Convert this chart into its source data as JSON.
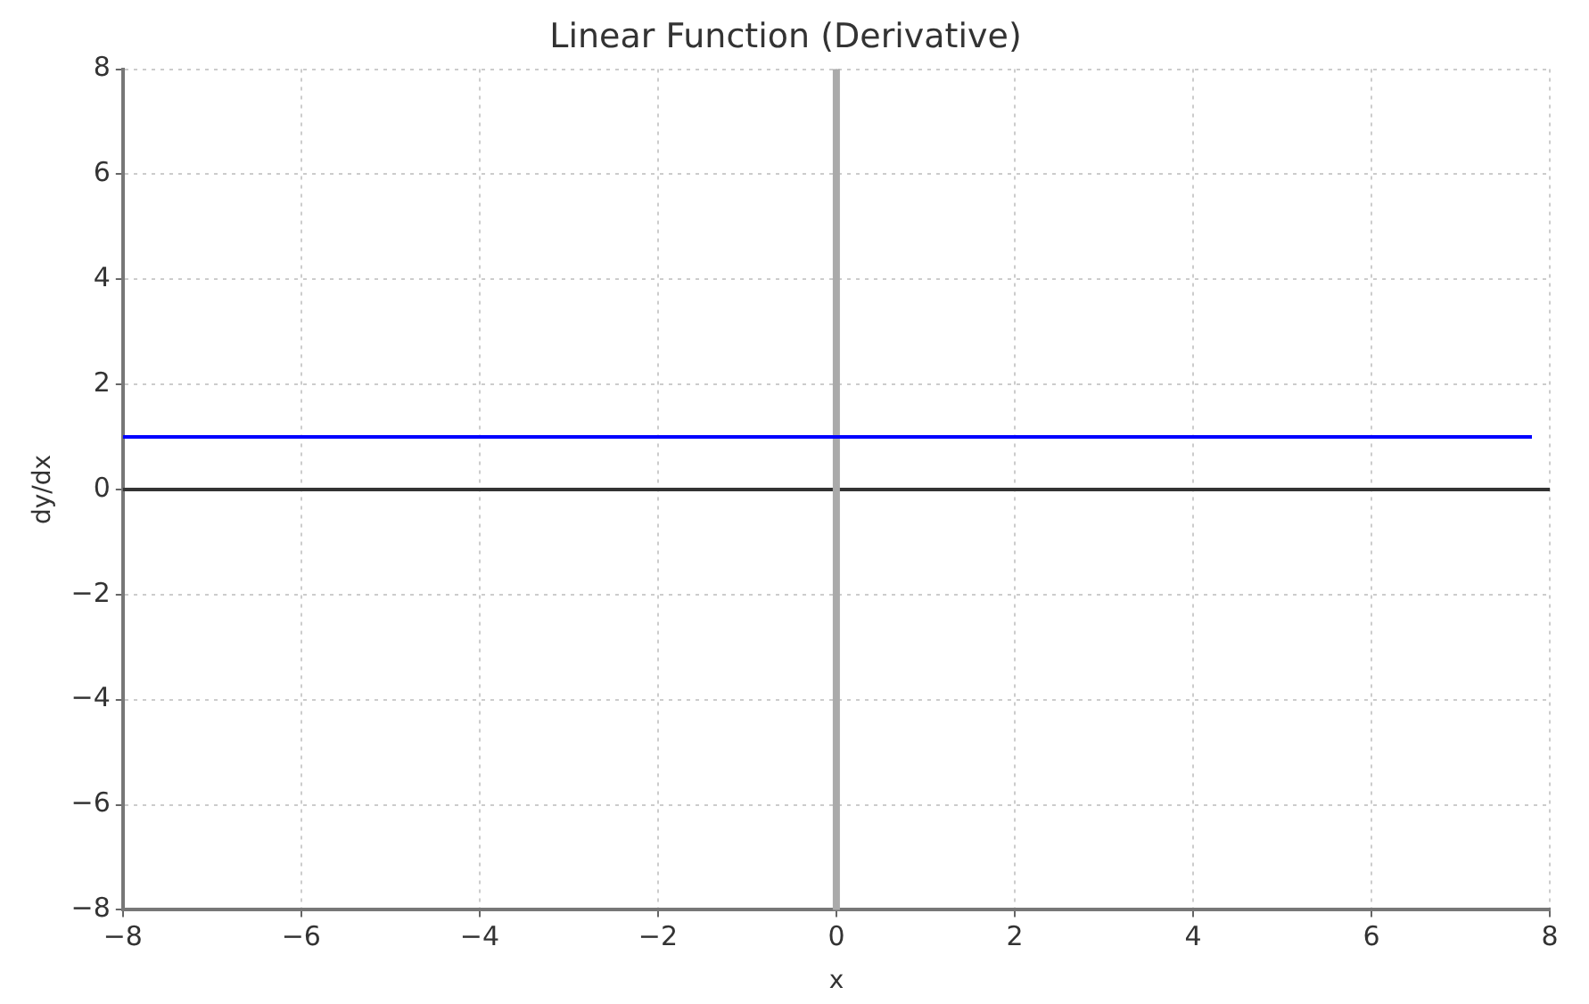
{
  "chart_data": {
    "type": "line",
    "title": "Linear Function (Derivative)",
    "xlabel": "x",
    "ylabel": "dy/dx",
    "x": [
      -8,
      7.8
    ],
    "series": [
      {
        "color": "#0000ff",
        "values": [
          1,
          1
        ]
      }
    ],
    "xlim": [
      -8,
      8
    ],
    "xticks": [
      -8,
      -6,
      -4,
      -2,
      0,
      2,
      4,
      6,
      8
    ],
    "ylim": [
      -8,
      8
    ],
    "yticks": [
      -8,
      -6,
      -4,
      -2,
      0,
      2,
      4,
      6,
      8
    ],
    "grid": true,
    "legend": false,
    "marker": "none",
    "line_style": "solid",
    "ref_lines": [
      {
        "axis": "y",
        "value": 0,
        "color": "#333333"
      },
      {
        "axis": "x",
        "value": 0,
        "color": "#aaaaaa"
      }
    ]
  }
}
